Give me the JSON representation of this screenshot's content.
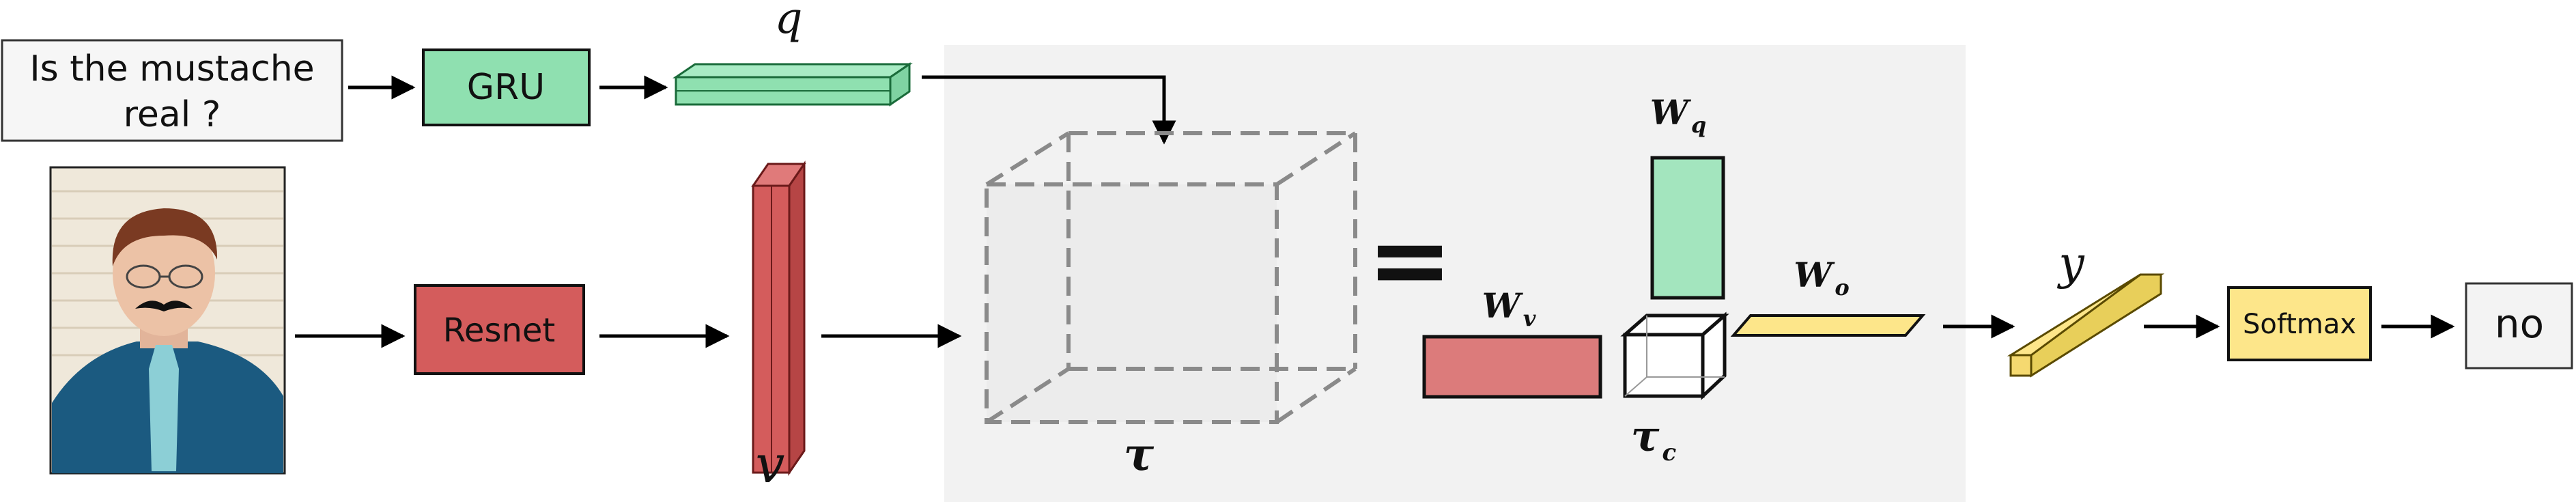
{
  "question": {
    "line1": "Is the mustache",
    "line2": "real ?"
  },
  "gru": {
    "label": "GRU"
  },
  "resnet": {
    "label": "Resnet"
  },
  "softmax": {
    "label": "Softmax"
  },
  "answer": {
    "label": "no"
  },
  "symbols": {
    "q": "q",
    "v": "v",
    "tau": "𝝉",
    "tau_c": "𝝉",
    "tau_c_sub": "c",
    "w_q": "W",
    "w_q_sub": "q",
    "w_v": "W",
    "w_v_sub": "v",
    "w_o": "W",
    "w_o_sub": "o",
    "y": "y",
    "equals": "="
  },
  "colors": {
    "green": "#8fe0b0",
    "red": "#d45c5c",
    "pink": "#dc7b7b",
    "yellow": "#fde68a",
    "panel": "#f2f2f2",
    "box": "#f6f6f6"
  },
  "icons": {
    "photo": "man-with-fake-mustache-photo"
  }
}
